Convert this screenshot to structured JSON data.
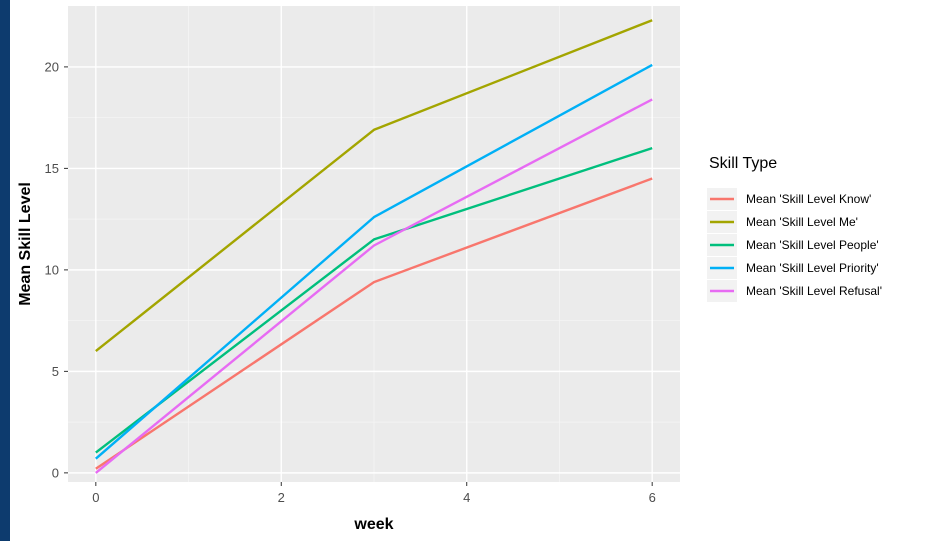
{
  "chart_data": {
    "type": "line",
    "x": [
      0,
      3,
      6
    ],
    "xlabel": "week",
    "ylabel": "Mean Skill Level",
    "xlim": [
      -0.3,
      6.3
    ],
    "ylim": [
      -0.45,
      23.0
    ],
    "xticks": [
      "0",
      "2",
      "4",
      "6"
    ],
    "yticks": [
      "0",
      "5",
      "10",
      "15",
      "20"
    ],
    "grid": true,
    "legend_title": "Skill Type",
    "legend_position": "right",
    "series": [
      {
        "name": "Mean 'Skill Level Know'",
        "color": "#f8766d",
        "values": [
          0.2,
          9.4,
          14.5
        ]
      },
      {
        "name": "Mean 'Skill Level Me'",
        "color": "#a3a500",
        "values": [
          6.0,
          16.9,
          22.3
        ]
      },
      {
        "name": "Mean 'Skill Level People'",
        "color": "#00bf7d",
        "values": [
          1.0,
          11.5,
          16.0
        ]
      },
      {
        "name": "Mean 'Skill Level Priority'",
        "color": "#00b0f6",
        "values": [
          0.7,
          12.6,
          20.1
        ]
      },
      {
        "name": "Mean 'Skill Level Refusal'",
        "color": "#e76bf3",
        "values": [
          0.0,
          11.2,
          18.4
        ]
      }
    ]
  }
}
